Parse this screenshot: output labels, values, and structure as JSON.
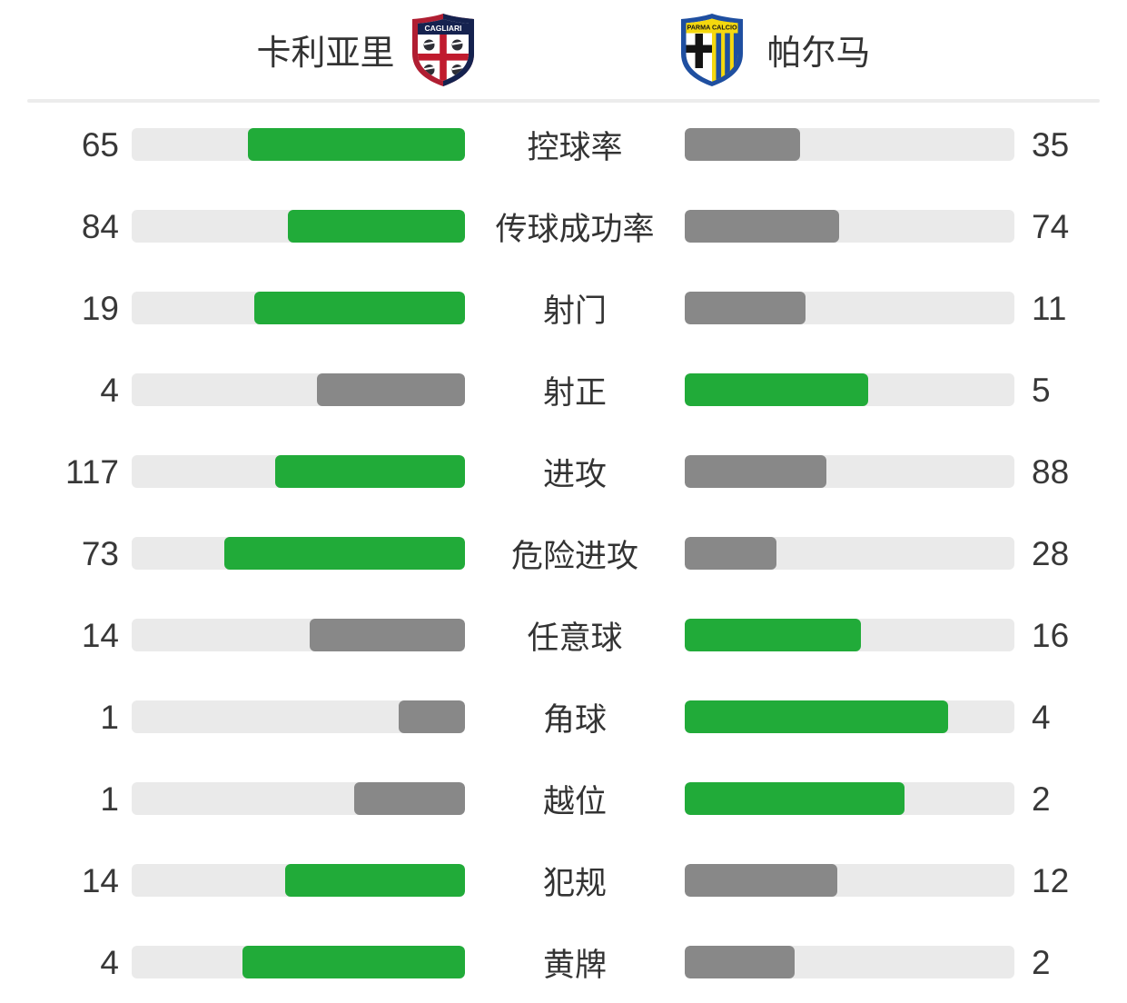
{
  "header": {
    "home": {
      "name": "卡利亚里",
      "logo_icon": "cagliari-crest",
      "crest_text": "CAGLIARI"
    },
    "away": {
      "name": "帕尔马",
      "logo_icon": "parma-crest",
      "crest_text": "PARMA CALCIO"
    }
  },
  "colors": {
    "green": "#21ab39",
    "gray": "#888888",
    "track": "#eaeaea",
    "text": "#333333",
    "divider": "#ececec",
    "cagliari_red": "#b01e32",
    "cagliari_navy": "#15224f",
    "parma_blue": "#1f4fa0",
    "parma_yellow": "#f5d80e"
  },
  "stats": [
    {
      "label": "控球率",
      "home": 65,
      "away": 35
    },
    {
      "label": "传球成功率",
      "home": 84,
      "away": 74
    },
    {
      "label": "射门",
      "home": 19,
      "away": 11
    },
    {
      "label": "射正",
      "home": 4,
      "away": 5
    },
    {
      "label": "进攻",
      "home": 117,
      "away": 88
    },
    {
      "label": "危险进攻",
      "home": 73,
      "away": 28
    },
    {
      "label": "任意球",
      "home": 14,
      "away": 16
    },
    {
      "label": "角球",
      "home": 1,
      "away": 4
    },
    {
      "label": "越位",
      "home": 1,
      "away": 2
    },
    {
      "label": "犯规",
      "home": 14,
      "away": 12
    },
    {
      "label": "黄牌",
      "home": 4,
      "away": 2
    }
  ],
  "chart_data": {
    "type": "bar",
    "orientation": "horizontal-paired",
    "title": "",
    "categories": [
      "控球率",
      "传球成功率",
      "射门",
      "射正",
      "进攻",
      "危险进攻",
      "任意球",
      "角球",
      "越位",
      "犯规",
      "黄牌"
    ],
    "series": [
      {
        "name": "卡利亚里",
        "values": [
          65,
          84,
          19,
          4,
          117,
          73,
          14,
          1,
          1,
          14,
          4
        ]
      },
      {
        "name": "帕尔马",
        "values": [
          35,
          74,
          11,
          5,
          88,
          28,
          16,
          4,
          2,
          12,
          2
        ]
      }
    ],
    "legend_position": "top",
    "grid": false,
    "bar_rule": "each bar width = value / (home + away) of its row; higher value colored green, lower value colored gray; home bars grow right-to-left, away bars grow left-to-right"
  }
}
